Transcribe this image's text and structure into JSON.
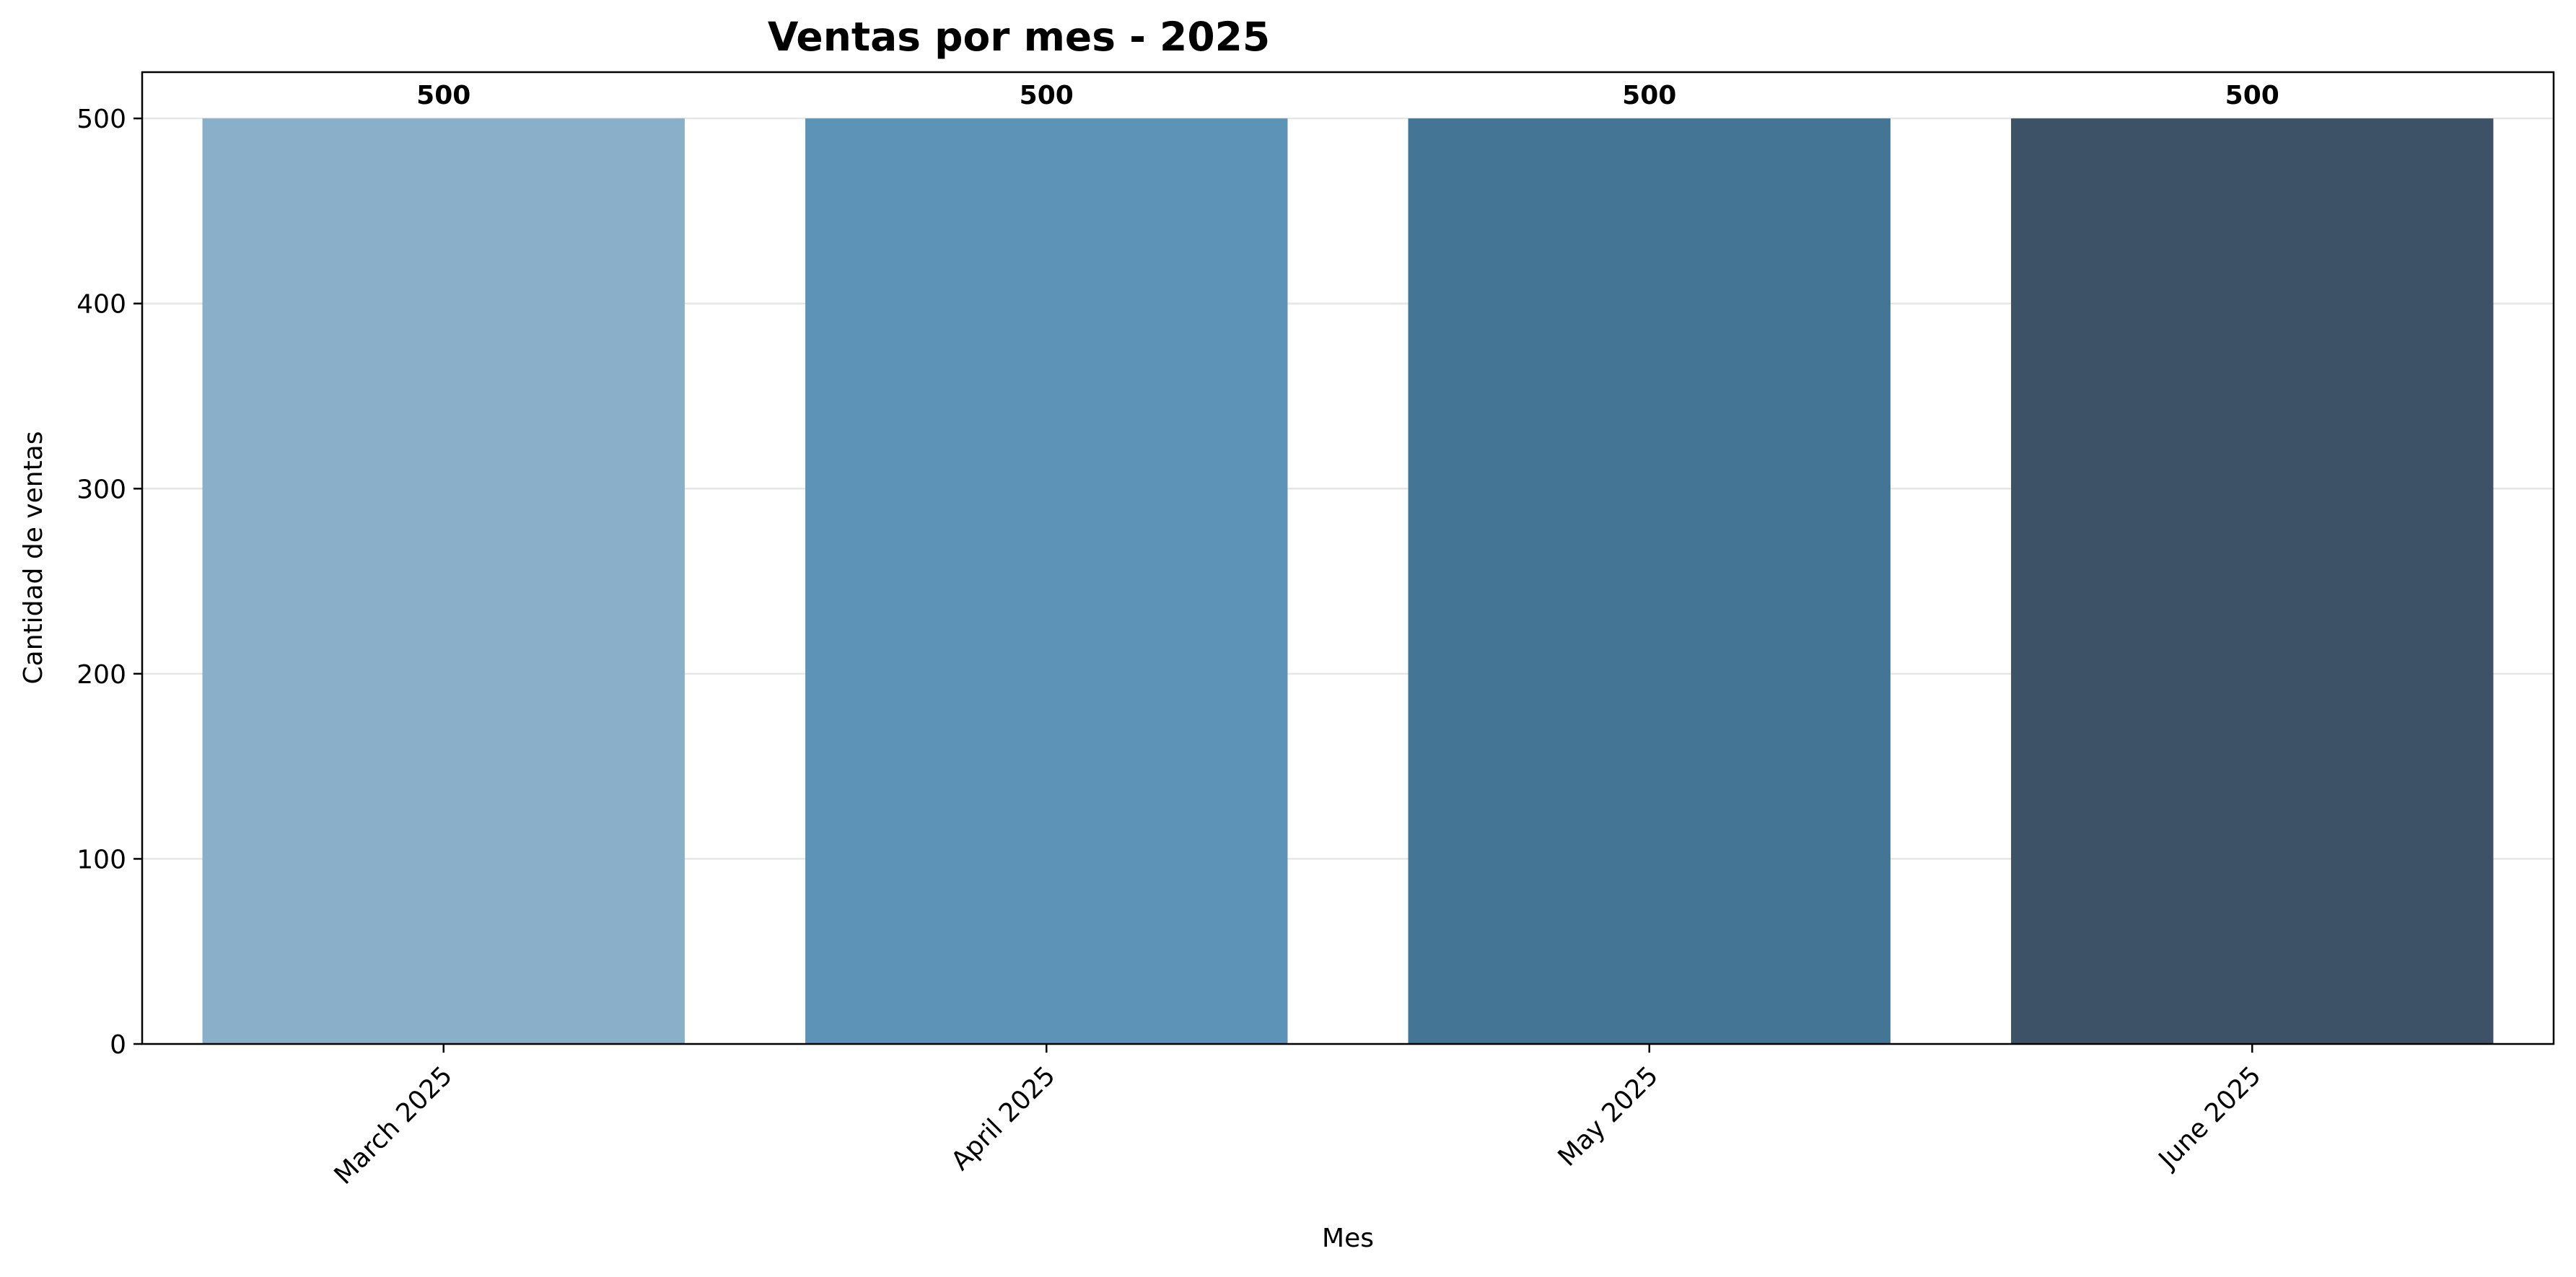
{
  "chart_data": {
    "type": "bar",
    "title": "Ventas por mes - 2025",
    "xlabel": "Mes",
    "ylabel": "Cantidad de ventas",
    "categories": [
      "March 2025",
      "April 2025",
      "May 2025",
      "June 2025"
    ],
    "values": [
      500,
      500,
      500,
      500
    ],
    "data_labels": [
      "500",
      "500",
      "500",
      "500"
    ],
    "colors": [
      "#89afc9",
      "#5e93b8",
      "#457595",
      "#3d5266"
    ],
    "ylim": [
      0,
      525
    ],
    "yticks": [
      0,
      100,
      200,
      300,
      400,
      500
    ],
    "grid": "y-axis",
    "legend": "none"
  }
}
